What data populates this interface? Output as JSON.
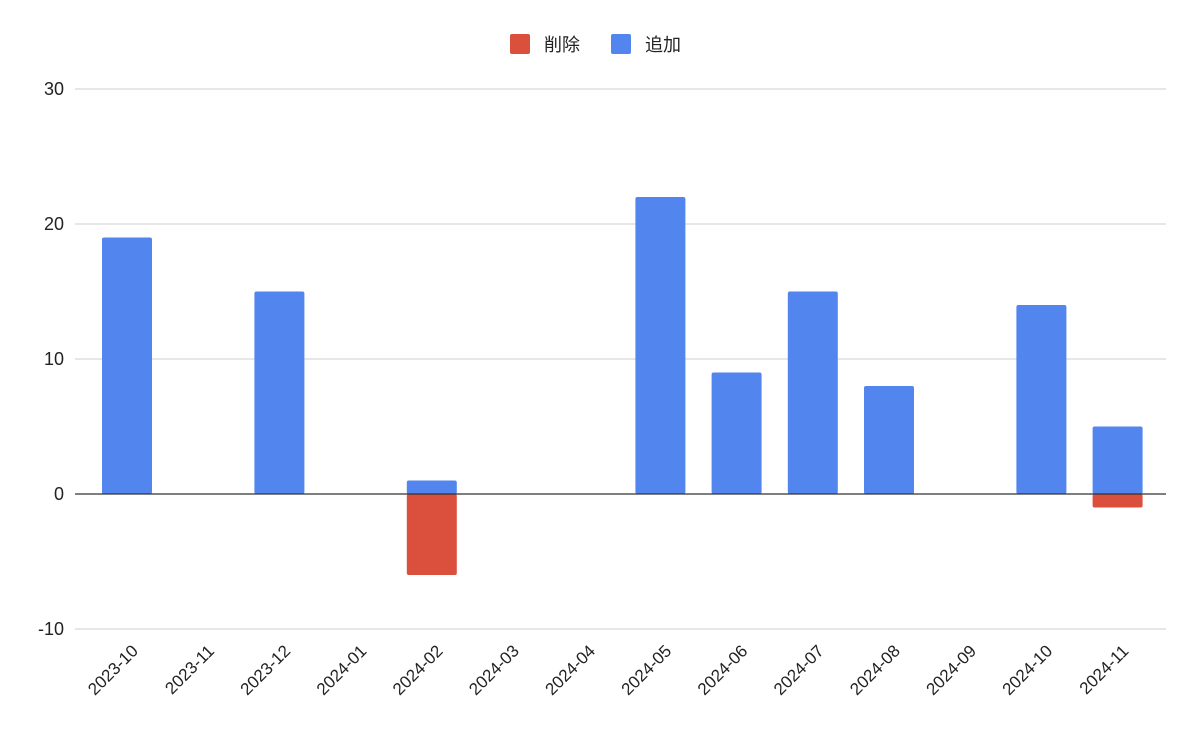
{
  "chart_data": {
    "type": "bar",
    "stacked": true,
    "categories": [
      "2023-10",
      "2023-11",
      "2023-12",
      "2024-01",
      "2024-02",
      "2024-03",
      "2024-04",
      "2024-05",
      "2024-06",
      "2024-07",
      "2024-08",
      "2024-09",
      "2024-10",
      "2024-11"
    ],
    "series": [
      {
        "name": "削除",
        "color": "#db4f3d",
        "values": [
          0,
          0,
          0,
          0,
          -6,
          0,
          0,
          0,
          0,
          0,
          0,
          0,
          0,
          -1
        ]
      },
      {
        "name": "追加",
        "color": "#5286ee",
        "values": [
          19,
          0,
          15,
          0,
          1,
          0,
          0,
          22,
          9,
          15,
          8,
          0,
          14,
          5
        ]
      }
    ],
    "title": "",
    "xlabel": "",
    "ylabel": "",
    "ylim": [
      -10,
      30
    ],
    "yticks": [
      30,
      20,
      10,
      0,
      -10
    ],
    "grid": true,
    "legend": "top-center"
  }
}
